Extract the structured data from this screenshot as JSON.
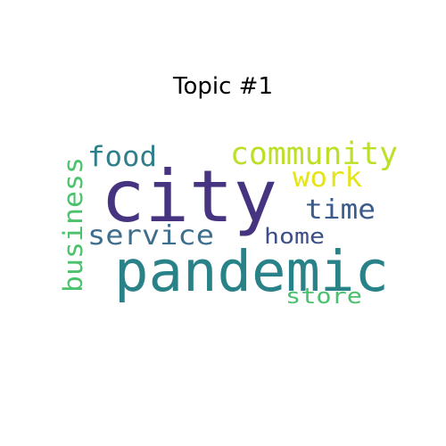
{
  "title": "Topic #1",
  "words": [
    {
      "text": "city",
      "color": "#463480"
    },
    {
      "text": "pandemic",
      "color": "#2a8289"
    },
    {
      "text": "community",
      "color": "#bcdf27"
    },
    {
      "text": "food",
      "color": "#2e7e8c"
    },
    {
      "text": "work",
      "color": "#e5e419"
    },
    {
      "text": "time",
      "color": "#3b5b8c"
    },
    {
      "text": "service",
      "color": "#3e6e8e"
    },
    {
      "text": "home",
      "color": "#3c4f8a"
    },
    {
      "text": "business",
      "color": "#4cc26c"
    },
    {
      "text": "store",
      "color": "#4ac16d"
    }
  ]
}
